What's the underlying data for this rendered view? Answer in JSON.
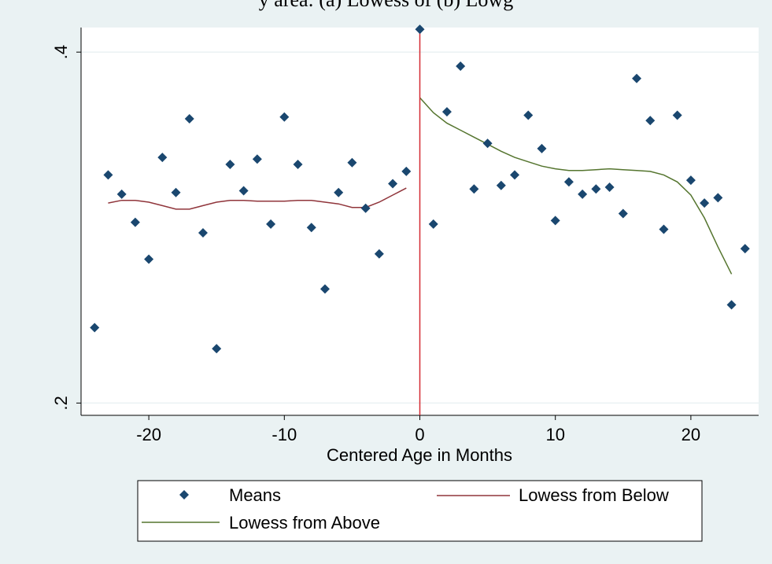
{
  "caption_fragment": "y area: (a) Lowess of (b) Lowg",
  "colors": {
    "background": "#eaf2f3",
    "plot_area": "#ffffff",
    "means_marker": "#1a476f",
    "lowess_below": "#90353b",
    "lowess_above": "#55752f",
    "cutoff_line": "#d42a32",
    "grid": "#eaf2f3"
  },
  "chart_data": {
    "type": "scatter",
    "xlabel": "Centered Age in Months",
    "ylabel": "",
    "xlim": [
      -25,
      25
    ],
    "ylim": [
      0.193,
      0.414
    ],
    "x_ticks": [
      -20,
      -10,
      0,
      10,
      20
    ],
    "x_tick_labels": [
      "-20",
      "-10",
      "0",
      "10",
      "20"
    ],
    "y_ticks": [
      0.2,
      0.4
    ],
    "y_tick_labels": [
      ".2",
      ".4"
    ],
    "grid": "horizontal",
    "cutoff_x": 0,
    "legend_position": "bottom",
    "series": [
      {
        "name": "Means",
        "kind": "markers",
        "marker": "diamond",
        "x": [
          -24,
          -23,
          -22,
          -21,
          -20,
          -19,
          -18,
          -17,
          -16,
          -15,
          -14,
          -13,
          -12,
          -11,
          -10,
          -9,
          -8,
          -7,
          -6,
          -5,
          -4,
          -3,
          -2,
          -1,
          0,
          1,
          2,
          3,
          4,
          5,
          6,
          7,
          8,
          9,
          10,
          11,
          12,
          13,
          14,
          15,
          16,
          17,
          18,
          19,
          20,
          21,
          22,
          23,
          24
        ],
        "y": [
          0.243,
          0.33,
          0.319,
          0.303,
          0.282,
          0.34,
          0.32,
          0.362,
          0.297,
          0.231,
          0.336,
          0.321,
          0.339,
          0.302,
          0.363,
          0.336,
          0.3,
          0.265,
          0.32,
          0.337,
          0.311,
          0.285,
          0.325,
          0.332,
          0.413,
          0.302,
          0.366,
          0.392,
          0.322,
          0.348,
          0.324,
          0.33,
          0.364,
          0.345,
          0.304,
          0.326,
          0.319,
          0.322,
          0.323,
          0.308,
          0.385,
          0.361,
          0.299,
          0.364,
          0.327,
          0.314,
          0.317,
          0.256,
          0.288
        ]
      },
      {
        "name": "Lowess from Below",
        "kind": "line",
        "x": [
          -23,
          -22,
          -21,
          -20,
          -19,
          -18,
          -17,
          -16,
          -15,
          -14,
          -13,
          -12,
          -11,
          -10,
          -9,
          -8,
          -7,
          -6,
          -5,
          -4,
          -3,
          -2,
          -1
        ],
        "y": [
          0.314,
          0.3155,
          0.3155,
          0.3145,
          0.3125,
          0.3105,
          0.3105,
          0.3125,
          0.3145,
          0.3155,
          0.3155,
          0.315,
          0.315,
          0.315,
          0.3155,
          0.3155,
          0.3145,
          0.3135,
          0.3115,
          0.3115,
          0.3145,
          0.3185,
          0.3225
        ]
      },
      {
        "name": "Lowess from Above",
        "kind": "line",
        "x": [
          0,
          1,
          2,
          3,
          4,
          5,
          6,
          7,
          8,
          9,
          10,
          11,
          12,
          13,
          14,
          15,
          16,
          17,
          18,
          19,
          20,
          21,
          22,
          23
        ],
        "y": [
          0.374,
          0.3655,
          0.3595,
          0.3555,
          0.3515,
          0.3475,
          0.3435,
          0.34,
          0.3375,
          0.335,
          0.3335,
          0.3325,
          0.3325,
          0.333,
          0.3335,
          0.333,
          0.3325,
          0.332,
          0.33,
          0.326,
          0.3185,
          0.3055,
          0.289,
          0.2735
        ]
      }
    ]
  }
}
